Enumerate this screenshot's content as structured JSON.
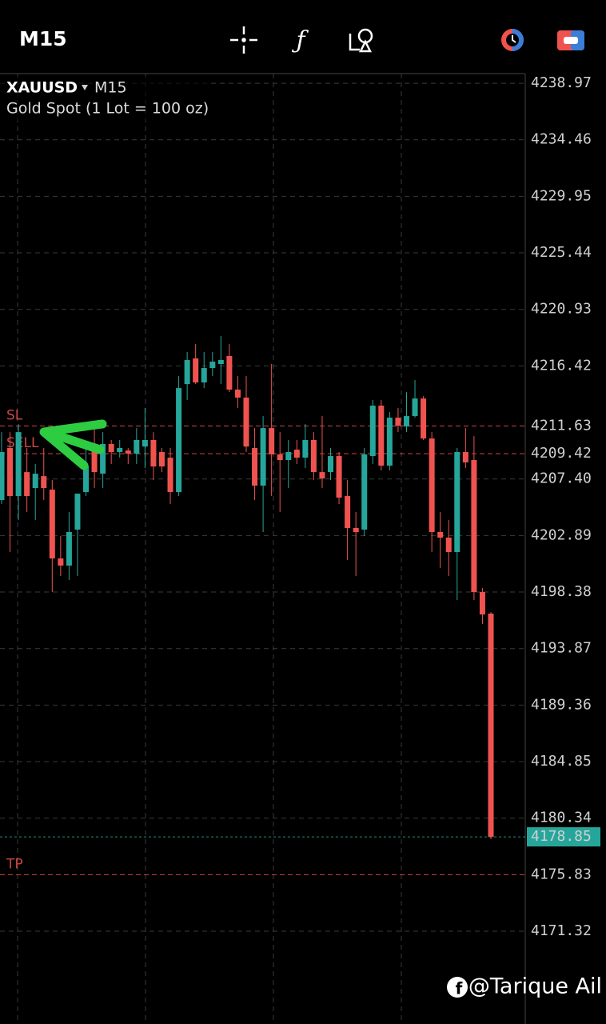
{
  "chart_data": {
    "type": "candlestick",
    "symbol": "XAUUSD",
    "timeframe": "M15",
    "description": "Gold Spot (1 Lot = 100 oz)",
    "watermark": "@Tarique Ail",
    "up_color": "#26a69a",
    "down_color": "#ef5350",
    "grid": true,
    "ylim": [
      4163.92,
      4239.74
    ],
    "yticks": [
      4238.97,
      4234.46,
      4229.95,
      4225.44,
      4220.93,
      4216.42,
      {
        "value": 4207.4,
        "label": "4207.40"
      },
      4202.89,
      4198.38,
      4193.87,
      4189.36,
      4184.85,
      4180.34,
      4171.32
    ],
    "levels": [
      {
        "name": "SL",
        "value": 4211.63,
        "color": "#ef5350"
      },
      {
        "name": "SELL",
        "value": 4209.42,
        "color": "#ef5350"
      },
      {
        "value": 4178.85,
        "color": "#26a69a"
      },
      {
        "name": "TP",
        "value": 4175.83,
        "color": "#ef5350"
      }
    ],
    "open": [
      4205.72,
      4209.87,
      4206.04,
      4207.95,
      4206.68,
      4207.63,
      4206.55,
      4201.06,
      4200.49,
      4203.36,
      4206.36,
      4209.87,
      4207.82,
      4210.19,
      4209.55,
      4209.67,
      4209.42,
      4209.99,
      4210.51,
      4209.55,
      4209.1,
      4206.36,
      4214.97,
      4217.02,
      4215.1,
      4216.25,
      4216.57,
      4217.21,
      4214.53,
      4213.89,
      4209.87,
      4206.87,
      4211.46,
      4209.36,
      4208.91,
      4209.74,
      4209.1,
      4210.51,
      4207.95,
      4207.95,
      4209.23,
      4206.04,
      4203.49,
      4203.36,
      4209.23,
      4213.25,
      4208.46,
      4212.29,
      4211.59,
      4212.42,
      4213.82,
      4210.63,
      4203.17,
      4202.72,
      4201.57,
      4209.55,
      4208.91,
      4198.38,
      4196.66
    ],
    "high": [
      4211.14,
      4211.14,
      4211.78,
      4209.87,
      4208.59,
      4209.87,
      4207.32,
      4202.85,
      4204.76,
      4205.72,
      4209.87,
      4211.78,
      4211.14,
      4210.51,
      4210.51,
      4209.87,
      4211.46,
      4213.06,
      4211.14,
      4209.87,
      4209.87,
      4215.61,
      4217.53,
      4218.17,
      4217.53,
      4217.53,
      4218.8,
      4218.17,
      4215.61,
      4215.61,
      4211.46,
      4212.42,
      4216.57,
      4211.14,
      4210.51,
      4210.51,
      4211.78,
      4211.14,
      4212.42,
      4209.87,
      4209.55,
      4207.32,
      4204.76,
      4209.87,
      4213.7,
      4213.7,
      4212.74,
      4213.06,
      4214.33,
      4215.29,
      4214.01,
      4211.14,
      4204.76,
      4204.12,
      4209.87,
      4211.46,
      4210.82,
      4198.7,
      4196.78
    ],
    "low": [
      4205.4,
      4201.57,
      4204.12,
      4204.76,
      4204.12,
      4205.72,
      4198.38,
      4199.66,
      4199.34,
      4199.66,
      4206.04,
      4206.68,
      4206.68,
      4208.59,
      4209.1,
      4208.59,
      4208.59,
      4208.27,
      4207.32,
      4207.95,
      4205.4,
      4206.04,
      4213.7,
      4214.97,
      4214.65,
      4215.61,
      4214.97,
      4214.33,
      4213.06,
      4209.55,
      4205.72,
      4203.17,
      4206.04,
      4204.76,
      4206.68,
      4208.59,
      4208.27,
      4207.32,
      4206.68,
      4207.32,
      4205.4,
      4200.93,
      4199.66,
      4202.85,
      4208.59,
      4208.08,
      4208.08,
      4211.14,
      4211.14,
      4212.29,
      4210.51,
      4201.57,
      4200.29,
      4199.66,
      4197.74,
      4208.27,
      4197.74,
      4195.83,
      4178.66
    ],
    "close": [
      4209.55,
      4206.04,
      4211.14,
      4206.04,
      4207.82,
      4206.68,
      4201.06,
      4200.49,
      4203.17,
      4206.23,
      4208.46,
      4207.95,
      4210.19,
      4209.55,
      4209.87,
      4209.42,
      4210.51,
      4210.51,
      4208.4,
      4208.4,
      4206.36,
      4214.65,
      4216.89,
      4215.1,
      4216.25,
      4216.76,
      4216.89,
      4214.53,
      4213.89,
      4209.99,
      4206.87,
      4211.46,
      4209.36,
      4208.91,
      4209.55,
      4209.1,
      4210.51,
      4207.95,
      4207.44,
      4209.23,
      4205.91,
      4203.49,
      4203.17,
      4209.36,
      4213.25,
      4208.46,
      4212.29,
      4211.65,
      4212.42,
      4213.82,
      4210.63,
      4203.17,
      4202.72,
      4201.57,
      4209.55,
      4208.72,
      4198.38,
      4196.59,
      4178.85
    ]
  }
}
